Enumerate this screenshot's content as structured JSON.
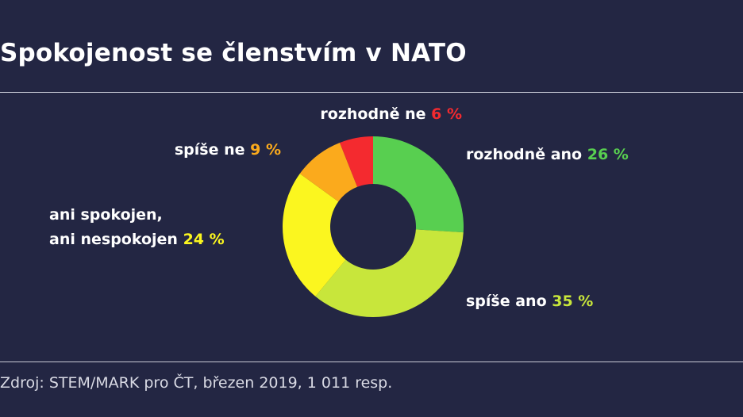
{
  "chart_data": {
    "type": "pie",
    "title": "Spokojenost se členstvím v NATO",
    "source": "Zdroj: STEM/MARK pro ČT, březen 2019, 1 011 resp.",
    "slices": [
      {
        "label": "rozhodně ano",
        "value": 26,
        "value_label": "26 %",
        "color": "#58cf50"
      },
      {
        "label": "spíše ano",
        "value": 35,
        "value_label": "35 %",
        "color": "#c8e63b"
      },
      {
        "label": [
          "ani spokojen,",
          "ani nespokojen"
        ],
        "value": 24,
        "value_label": "24 %",
        "color": "#fbf61f"
      },
      {
        "label": "spíše ne",
        "value": 9,
        "value_label": "9 %",
        "color": "#fbaa1c"
      },
      {
        "label": "rozhodně ne",
        "value": 6,
        "value_label": "6 %",
        "color": "#f42a2f"
      }
    ],
    "donut": true,
    "legend": "none"
  }
}
